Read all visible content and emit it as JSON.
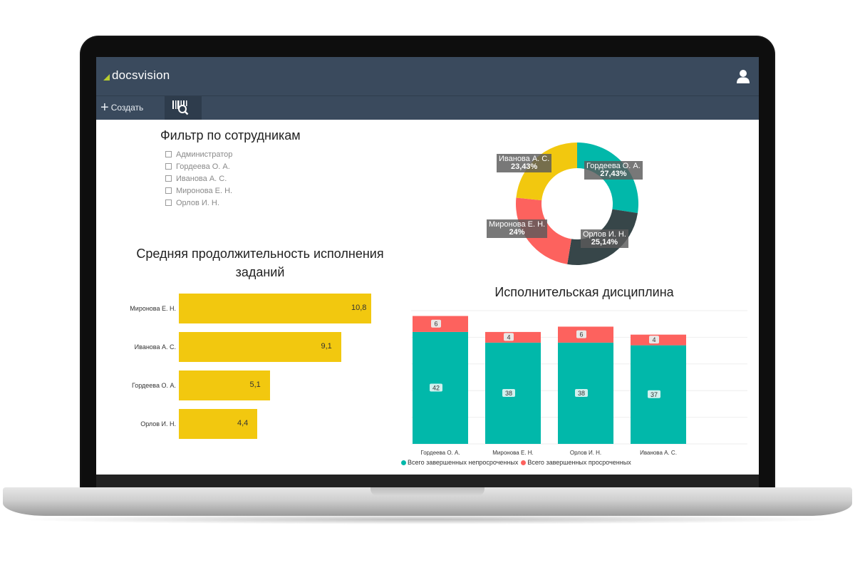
{
  "app": {
    "logo_text": "docsvision",
    "user_icon": "user-icon"
  },
  "toolbar": {
    "create_label": "Создать",
    "create_icon": "plus-icon",
    "scan_icon": "barcode-search-icon"
  },
  "filter": {
    "title": "Фильтр по сотрудникам",
    "items": [
      "Администратор",
      "Гордеева О. А.",
      "Иванова А. С.",
      "Миронова Е. Н.",
      "Орлов И. Н."
    ]
  },
  "avg_chart": {
    "title": "Средняя продолжительность исполнения заданий",
    "chart_data": {
      "type": "bar",
      "orientation": "horizontal",
      "categories": [
        "Миронова Е. Н.",
        "Иванова А. С.",
        "Гордеева О. А.",
        "Орлов И. Н."
      ],
      "values": [
        10.8,
        9.1,
        5.1,
        4.4
      ],
      "value_labels": [
        "10,8",
        "9,1",
        "5,1",
        "4,4"
      ],
      "color": "#f2c80f",
      "xlim": [
        0,
        10.8
      ]
    }
  },
  "donut_chart": {
    "chart_data": {
      "type": "pie",
      "donut": true,
      "slices": [
        {
          "label": "Гордеева О. А.",
          "value": 27.43,
          "pct_label": "27,43%",
          "color": "#01b8aa"
        },
        {
          "label": "Орлов И. Н.",
          "value": 25.14,
          "pct_label": "25,14%",
          "color": "#374649"
        },
        {
          "label": "Миронова Е. Н.",
          "value": 24.0,
          "pct_label": "24%",
          "color": "#fd625e"
        },
        {
          "label": "Иванова А. С.",
          "value": 23.43,
          "pct_label": "23,43%",
          "color": "#f2c80f"
        }
      ]
    }
  },
  "discipline_chart": {
    "title": "Исполнительская дисциплина",
    "chart_data": {
      "type": "bar",
      "stacked": true,
      "categories": [
        "Гордеева О. А.",
        "Миронова Е. Н.",
        "Орлов И. Н.",
        "Иванова А. С."
      ],
      "series": [
        {
          "name": "Всего завершенных непросроченных",
          "values": [
            42,
            38,
            38,
            37
          ],
          "color": "#01b8aa"
        },
        {
          "name": "Всего завершенных просроченных",
          "values": [
            6,
            4,
            6,
            4
          ],
          "color": "#fd625e"
        }
      ],
      "ylim": [
        0,
        50
      ],
      "grid": true,
      "legend": "bottom-left"
    }
  }
}
